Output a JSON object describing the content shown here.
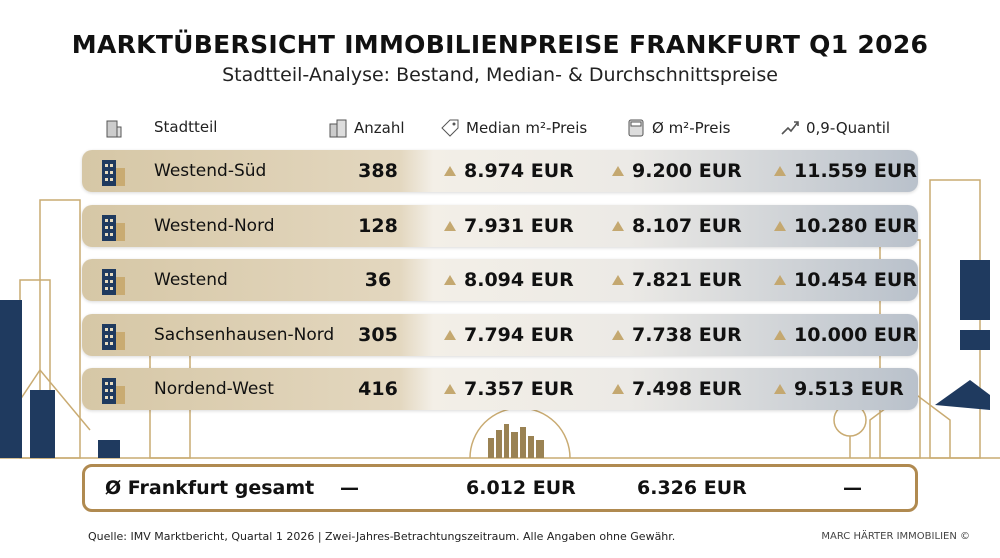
{
  "title": "MARKTÜBERSICHT IMMOBILIENPREISE FRANKFURT Q1 2026",
  "subtitle": "Stadtteil-Analyse: Bestand, Median- & Durchschnittspreise",
  "colors": {
    "gold": "#b08a50",
    "navy": "#1f3a5f",
    "arrow": "#c4a870"
  },
  "chart_data": {
    "type": "table",
    "columns": [
      "Stadtteil",
      "Anzahl",
      "Median m²-Preis",
      "Ø m²-Preis",
      "0,9-Quantil"
    ],
    "column_icons": [
      "building-icon",
      "buildings-icon",
      "price-tag-icon",
      "calculator-icon",
      "trend-up-icon"
    ],
    "rows": [
      {
        "stadtteil": "Westend-Süd",
        "anzahl": "388",
        "median": "8.974 EUR",
        "avg": "9.200 EUR",
        "q90": "11.559 EUR",
        "icon": "skyscraper-icon"
      },
      {
        "stadtteil": "Westend-Nord",
        "anzahl": "128",
        "median": "7.931 EUR",
        "avg": "8.107 EUR",
        "q90": "10.280 EUR",
        "icon": "townhouse-icon"
      },
      {
        "stadtteil": "Westend",
        "anzahl": "36",
        "median": "8.094 EUR",
        "avg": "7.821 EUR",
        "q90": "10.454 EUR",
        "icon": "shop-icon"
      },
      {
        "stadtteil": "Sachsenhausen-Nord",
        "anzahl": "305",
        "median": "7.794 EUR",
        "avg": "7.738 EUR",
        "q90": "10.000 EUR",
        "icon": "riverside-icon"
      },
      {
        "stadtteil": "Nordend-West",
        "anzahl": "416",
        "median": "7.357 EUR",
        "avg": "7.498 EUR",
        "q90": "9.513 EUR",
        "icon": "apartment-icon"
      }
    ],
    "total": {
      "label": "Ø Frankfurt gesamt",
      "anzahl": "—",
      "median": "6.012 EUR",
      "avg": "6.326 EUR",
      "q90": "—"
    }
  },
  "footer": "Quelle: IMV Marktbericht, Quartal 1 2026 | Zwei-Jahres-Betrachtungszeitraum. Alle Angaben ohne Gewähr.",
  "brand": "MARC HÄRTER IMMOBILIEN ©"
}
